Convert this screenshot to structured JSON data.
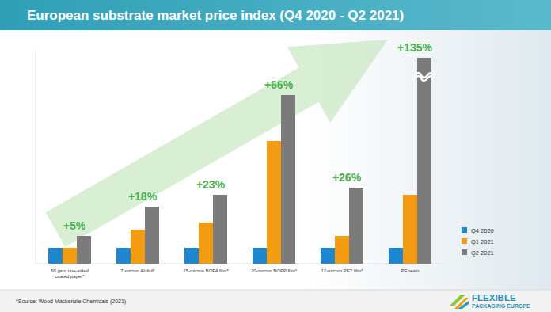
{
  "chart_data": {
    "type": "bar",
    "title": "European substrate market price index (Q4 2020 - Q2 2021)",
    "categories": [
      "60 gsm one-sided coated paper*",
      "7-micron Alufoil*",
      "15-micron BOPA film*",
      "20-micron BOPP film*",
      "12-micron PET film*",
      "PE resin"
    ],
    "series": [
      {
        "name": "Q4 2020",
        "color": "#1f87cf",
        "values": [
          100,
          100,
          100,
          100,
          100,
          100
        ]
      },
      {
        "name": "Q1 2021",
        "color": "#f39c12",
        "values": [
          100,
          215,
          260,
          775,
          175,
          435
        ]
      },
      {
        "name": "Q2 2021",
        "color": "#7b7b7b",
        "values": [
          175,
          360,
          435,
          1065,
          480,
          1300
        ]
      }
    ],
    "annotations": [
      "+5%",
      "+18%",
      "+23%",
      "+66%",
      "+26%",
      "+135%"
    ],
    "ylim": [
      0,
      1350
    ],
    "yticks": [],
    "tick_labels": "x",
    "legend": "right",
    "grid": false
  },
  "footer": {
    "source": "*Source: Wood Mackenzie Chemicals (2021)",
    "logo": [
      "FLEXIBLE",
      "PACKAGING EUROPE"
    ]
  }
}
